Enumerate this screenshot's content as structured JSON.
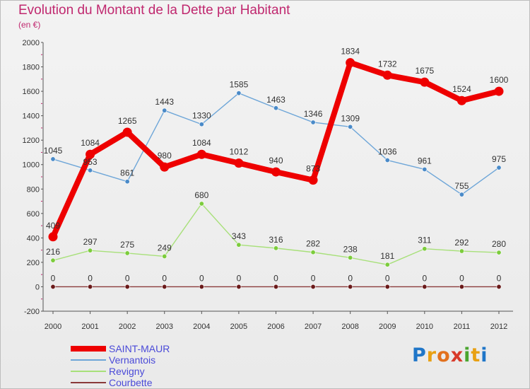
{
  "title": "Evolution du Montant de la Dette par Habitant",
  "subtitle": "(en €)",
  "logo": {
    "text": "Proxiti",
    "letters": [
      {
        "ch": "P",
        "color": "#1f76c8"
      },
      {
        "ch": "r",
        "color": "#e8a013"
      },
      {
        "ch": "o",
        "color": "#e2711d"
      },
      {
        "ch": "x",
        "color": "#d83a2a"
      },
      {
        "ch": "i",
        "color": "#4aa52e"
      },
      {
        "ch": "t",
        "color": "#e8a013"
      },
      {
        "ch": "i",
        "color": "#1f76c8"
      }
    ]
  },
  "chart_data": {
    "type": "line",
    "title": "Evolution du Montant de la Dette par Habitant",
    "subtitle": "(en €)",
    "xlabel": "",
    "ylabel": "",
    "ylim": [
      -200,
      2000
    ],
    "yticks": [
      -200,
      0,
      200,
      400,
      600,
      800,
      1000,
      1200,
      1400,
      1600,
      1800,
      2000
    ],
    "categories": [
      "2000",
      "2001",
      "2002",
      "2003",
      "2004",
      "2005",
      "2006",
      "2007",
      "2008",
      "2009",
      "2010",
      "2011",
      "2012"
    ],
    "grid": false,
    "legend_position": "bottom-left",
    "series": [
      {
        "name": "SAINT-MAUR",
        "color": "#ee0000",
        "marker_color": "#ee0000",
        "values": [
          409,
          1084,
          1265,
          980,
          1084,
          1012,
          940,
          873,
          1834,
          1732,
          1675,
          1524,
          1600
        ]
      },
      {
        "name": "Vernantois",
        "color": "#6ea6d8",
        "marker_color": "#4a8ac8",
        "values": [
          1045,
          953,
          861,
          1443,
          1330,
          1585,
          1463,
          1346,
          1309,
          1036,
          961,
          755,
          975
        ]
      },
      {
        "name": "Revigny",
        "color": "#a8e07a",
        "marker_color": "#7ccc3c",
        "values": [
          216,
          297,
          275,
          249,
          680,
          343,
          316,
          282,
          238,
          181,
          311,
          292,
          280
        ]
      },
      {
        "name": "Courbette",
        "color": "#8a3a3a",
        "marker_color": "#6a1a1a",
        "values": [
          0,
          0,
          0,
          0,
          0,
          0,
          0,
          0,
          0,
          0,
          0,
          0,
          0
        ]
      }
    ]
  }
}
